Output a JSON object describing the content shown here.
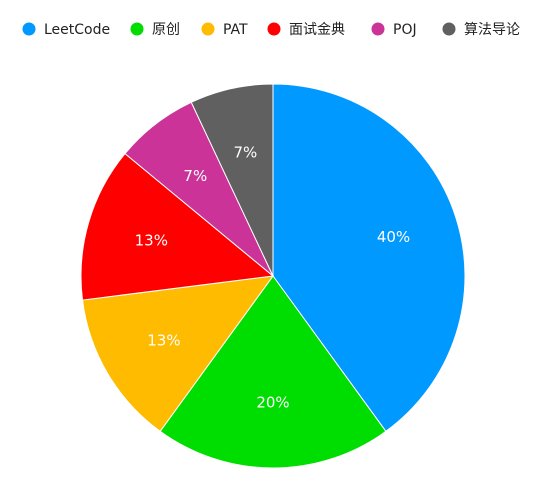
{
  "chart_data": {
    "type": "pie",
    "title": "",
    "legend_position": "top",
    "series": [
      {
        "name": "LeetCode",
        "value": 40,
        "label": "40%",
        "color": "#0099ff"
      },
      {
        "name": "原创",
        "value": 20,
        "label": "20%",
        "color": "#00dd00"
      },
      {
        "name": "PAT",
        "value": 13,
        "label": "13%",
        "color": "#ffbb00"
      },
      {
        "name": "面试金典",
        "value": 13,
        "label": "13%",
        "color": "#ff0000"
      },
      {
        "name": "POJ",
        "value": 7,
        "label": "7%",
        "color": "#cc3399"
      },
      {
        "name": "算法导论",
        "value": 7,
        "label": "7%",
        "color": "#606060"
      }
    ]
  }
}
